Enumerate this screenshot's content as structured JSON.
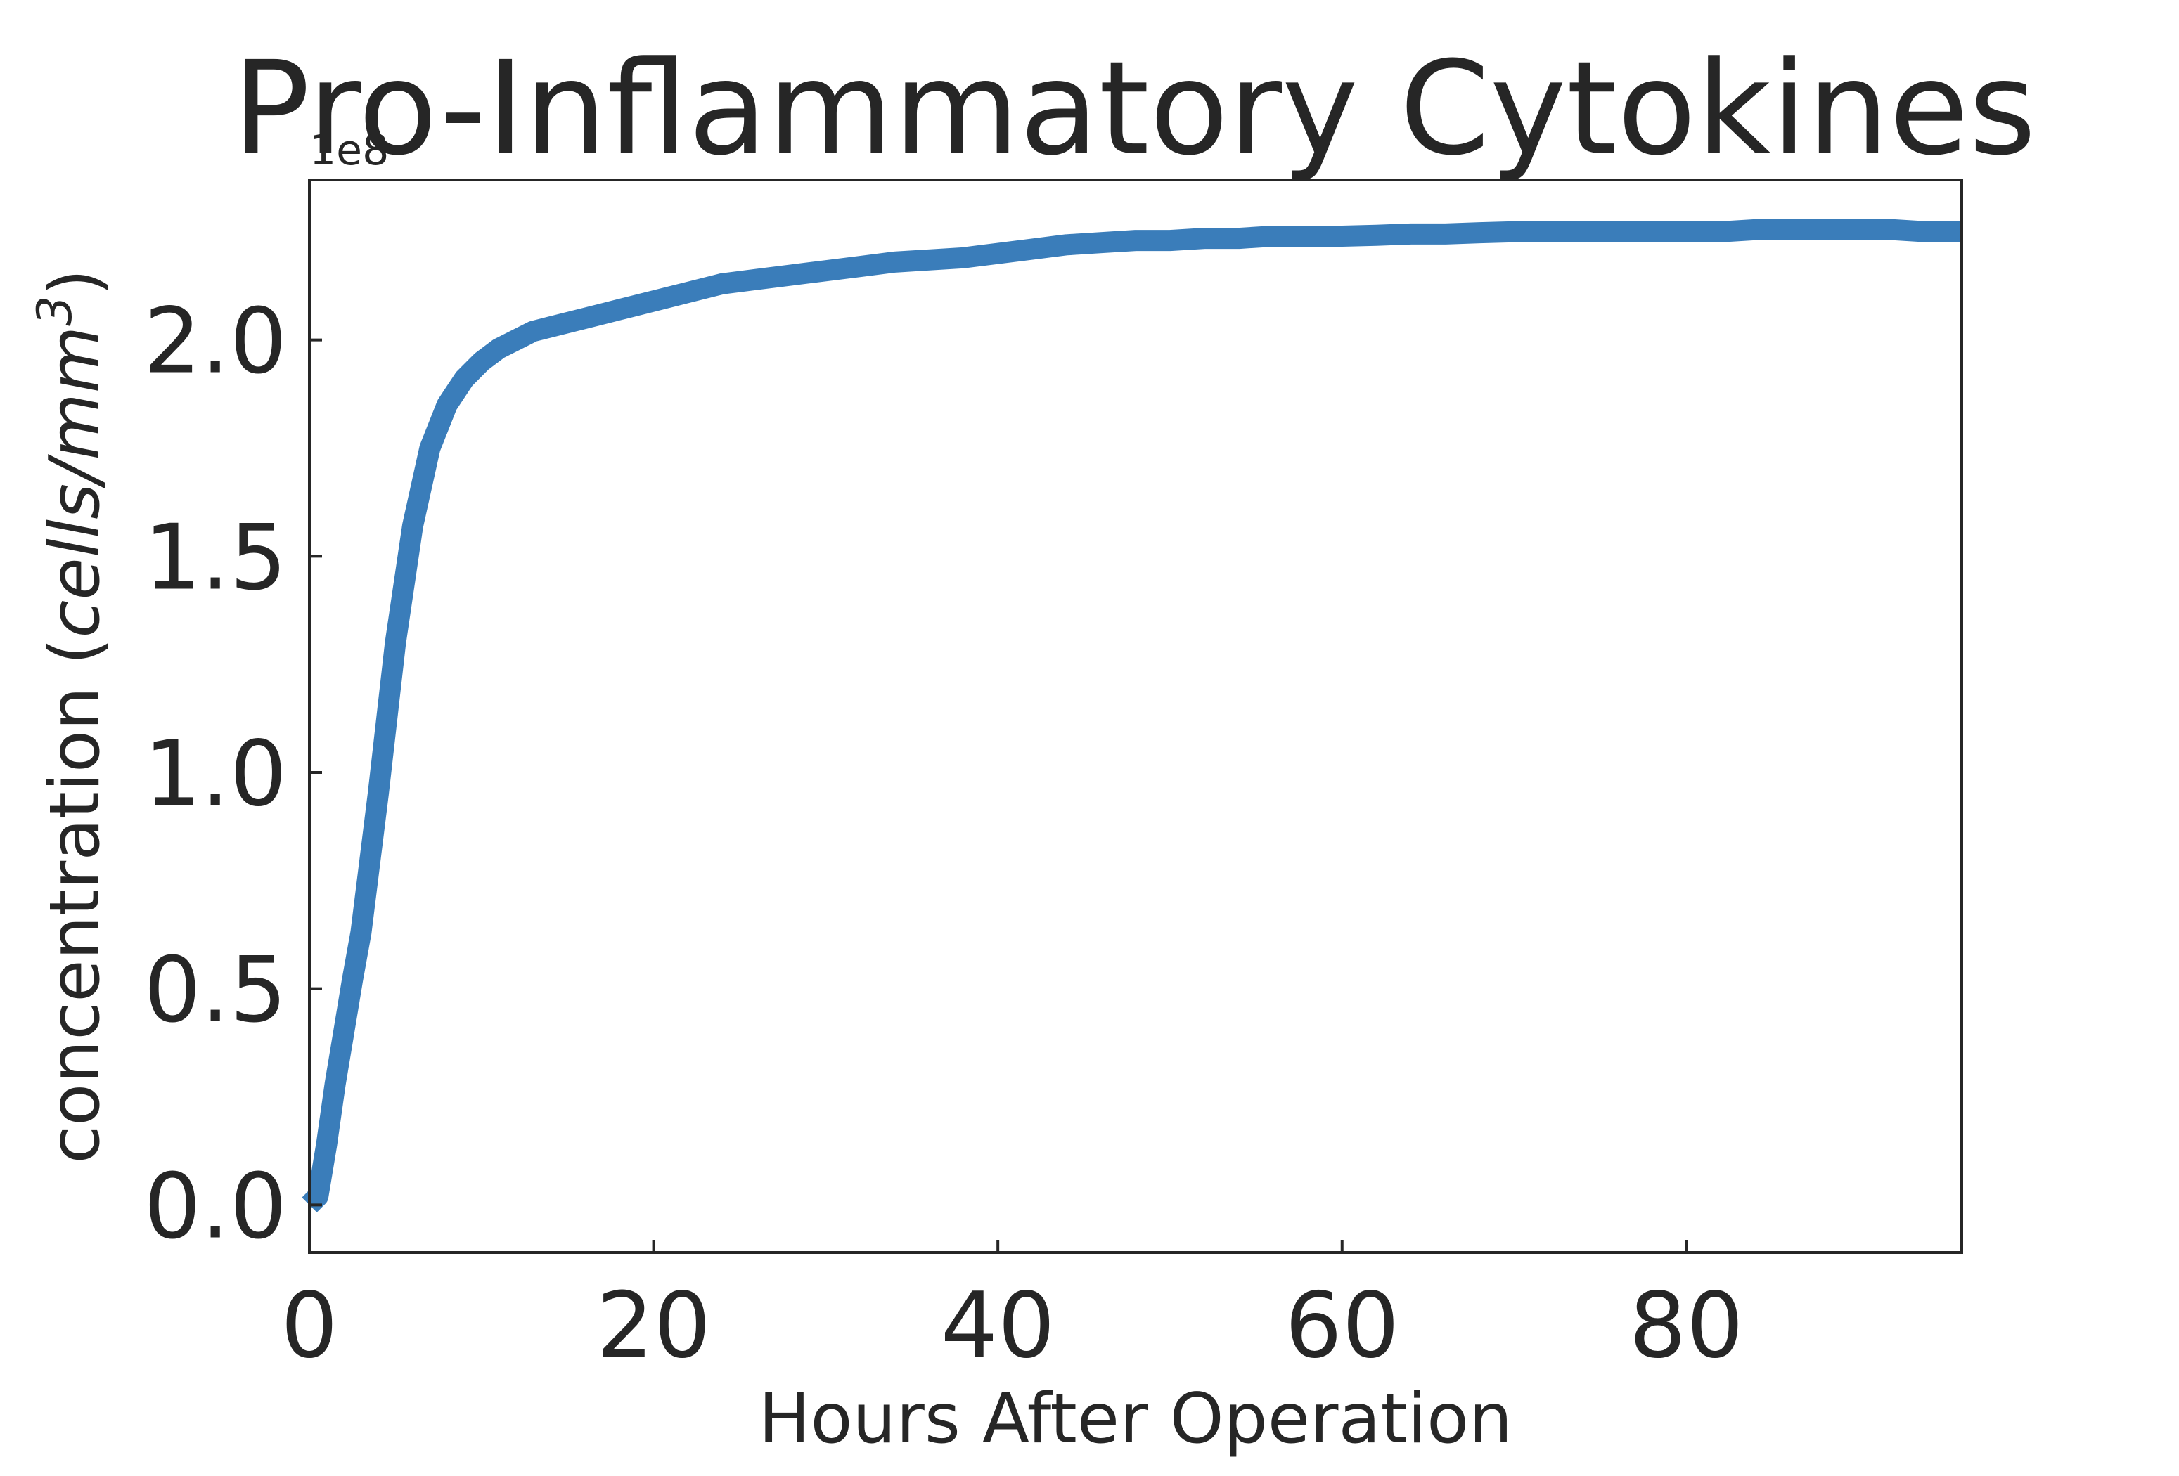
{
  "chart_data": {
    "type": "line",
    "title": "Pro-Inflammatory Cytokines",
    "xlabel": "Hours After Operation",
    "ylabel": {
      "prefix": "concentration (",
      "unit_italic": "cells/mm",
      "superscript": "3",
      "suffix": ")"
    },
    "y_offset_label": "1e8",
    "xlim": [
      0,
      96
    ],
    "ylim": [
      -0.11,
      2.37
    ],
    "y_scale_factor": 100000000,
    "x_ticks": [
      {
        "value": 0,
        "label": "0"
      },
      {
        "value": 20,
        "label": "20"
      },
      {
        "value": 40,
        "label": "40"
      },
      {
        "value": 60,
        "label": "60"
      },
      {
        "value": 80,
        "label": "80"
      }
    ],
    "y_ticks": [
      {
        "value": 0.0,
        "label": "0.0"
      },
      {
        "value": 0.5,
        "label": "0.5"
      },
      {
        "value": 1.0,
        "label": "1.0"
      },
      {
        "value": 1.5,
        "label": "1.5"
      },
      {
        "value": 2.0,
        "label": "2.0"
      }
    ],
    "grid": false,
    "colors": {
      "line": "#3a7dba",
      "axes": "#262626",
      "text": "#262626"
    },
    "series": [
      {
        "x": [
          0,
          0.5,
          1,
          1.5,
          2,
          2.5,
          3,
          4,
          5,
          6,
          7,
          8,
          9,
          10,
          11,
          12,
          13,
          14,
          15,
          16,
          17,
          18,
          20,
          22,
          24,
          26,
          28,
          30,
          32,
          34,
          36,
          38,
          40,
          42,
          44,
          46,
          48,
          50,
          52,
          54,
          56,
          58,
          60,
          62,
          64,
          66,
          68,
          70,
          72,
          74,
          76,
          78,
          80,
          82,
          84,
          86,
          88,
          90,
          92,
          94,
          96
        ],
        "y": [
          0.0,
          0.02,
          0.14,
          0.28,
          0.4,
          0.52,
          0.63,
          0.95,
          1.3,
          1.57,
          1.75,
          1.85,
          1.91,
          1.95,
          1.98,
          2.0,
          2.02,
          2.03,
          2.04,
          2.05,
          2.06,
          2.07,
          2.09,
          2.11,
          2.13,
          2.14,
          2.15,
          2.16,
          2.17,
          2.18,
          2.185,
          2.19,
          2.2,
          2.21,
          2.22,
          2.225,
          2.23,
          2.23,
          2.235,
          2.235,
          2.24,
          2.24,
          2.24,
          2.242,
          2.245,
          2.245,
          2.248,
          2.25,
          2.25,
          2.25,
          2.25,
          2.25,
          2.25,
          2.25,
          2.255,
          2.255,
          2.255,
          2.255,
          2.255,
          2.25,
          2.25
        ]
      }
    ]
  }
}
